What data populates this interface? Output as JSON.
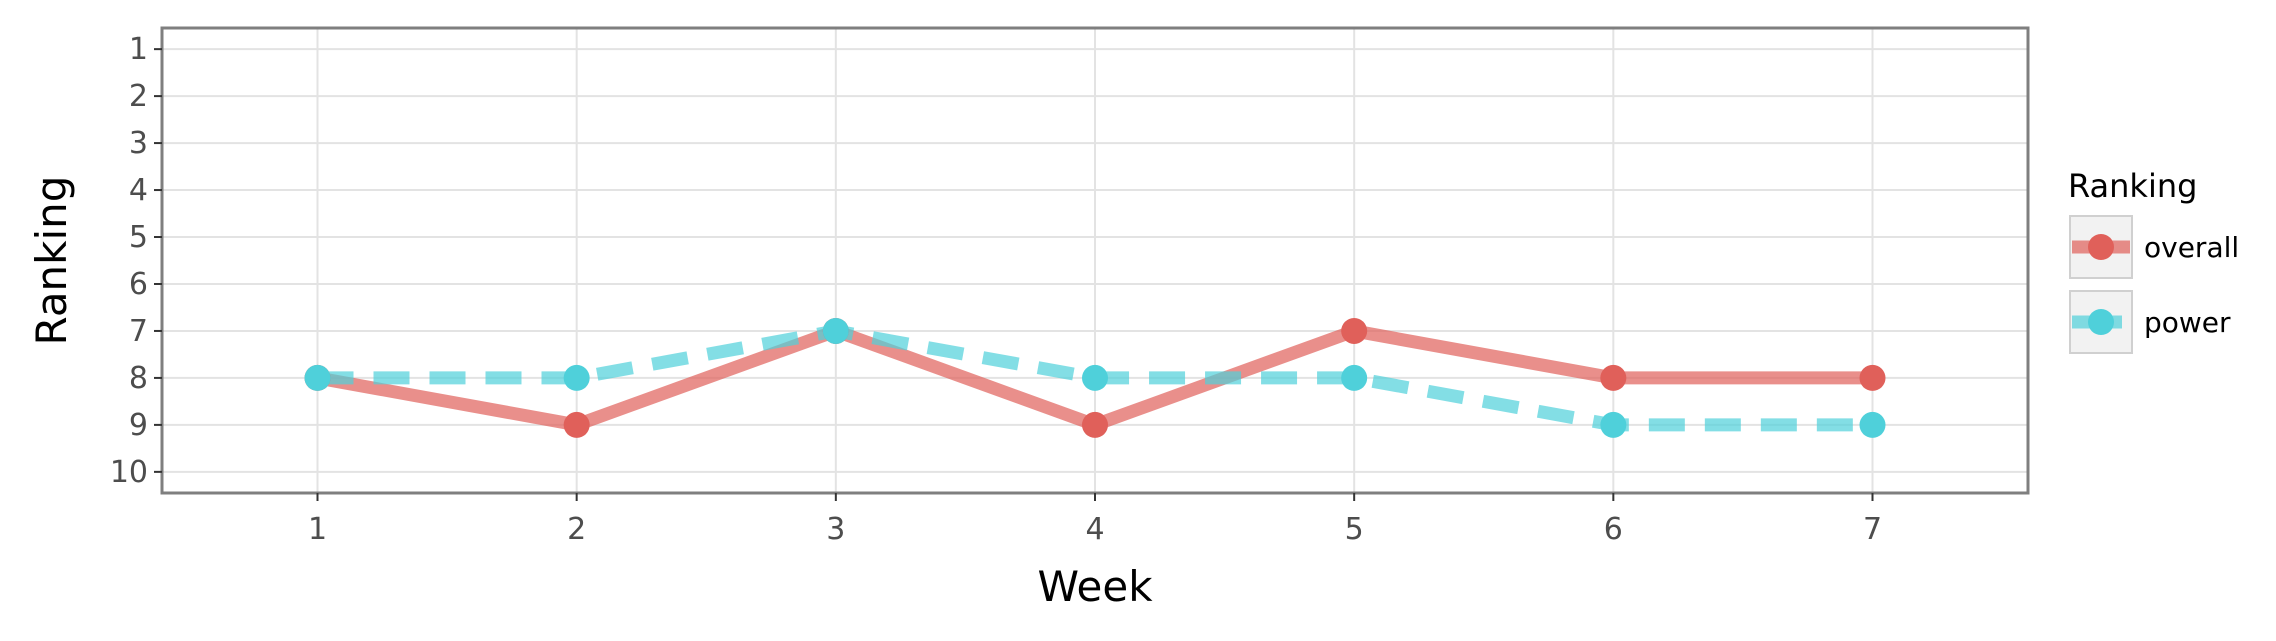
{
  "chart_data": {
    "type": "line",
    "xlabel": "Week",
    "ylabel": "Ranking",
    "x": [
      1,
      2,
      3,
      4,
      5,
      6,
      7
    ],
    "xlim": [
      0.4,
      7.6
    ],
    "ylim": [
      10.45,
      0.55
    ],
    "y_reversed": true,
    "x_ticks": [
      "1",
      "2",
      "3",
      "4",
      "5",
      "6",
      "7"
    ],
    "y_ticks": [
      "1",
      "2",
      "3",
      "4",
      "5",
      "6",
      "7",
      "8",
      "9",
      "10"
    ],
    "grid": true,
    "legend": {
      "title": "Ranking",
      "position": "right"
    },
    "series": [
      {
        "name": "overall",
        "values": [
          8,
          9,
          7,
          9,
          7,
          8,
          8
        ],
        "color": "#e0605a",
        "line_style": "solid"
      },
      {
        "name": "power",
        "values": [
          8,
          8,
          7,
          8,
          8,
          9,
          9
        ],
        "color": "#4fd0da",
        "line_style": "dashed"
      }
    ]
  }
}
